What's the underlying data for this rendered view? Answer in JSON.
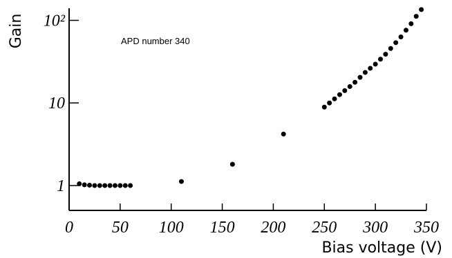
{
  "chart_data": {
    "type": "scatter",
    "annotation": "APD number 340",
    "x_label": "Bias voltage (V)",
    "y_label": "Gain",
    "y_log": true,
    "color": "#000000",
    "xlim": [
      0,
      350
    ],
    "xticks": [
      0,
      50,
      100,
      150,
      200,
      250,
      300,
      350
    ],
    "ylim": [
      0.5,
      140
    ],
    "yticks": [
      1,
      10,
      {
        "value": 100,
        "label": "10²"
      }
    ],
    "x": [
      10,
      15,
      20,
      25,
      30,
      35,
      40,
      45,
      50,
      55,
      60,
      110,
      160,
      210,
      250,
      255,
      260,
      265,
      270,
      275,
      280,
      285,
      290,
      295,
      300,
      305,
      310,
      315,
      320,
      325,
      330,
      335,
      340,
      345
    ],
    "values": [
      1.05,
      1.02,
      1.01,
      1.0,
      1.0,
      1.0,
      1.0,
      1.0,
      1.0,
      1.0,
      1.0,
      1.12,
      1.81,
      4.2,
      8.9,
      10,
      11.2,
      12.6,
      14.1,
      15.8,
      17.8,
      20.4,
      23.4,
      26.3,
      29.5,
      33.9,
      38.9,
      45.7,
      53.7,
      63,
      76,
      91,
      112,
      135
    ]
  }
}
